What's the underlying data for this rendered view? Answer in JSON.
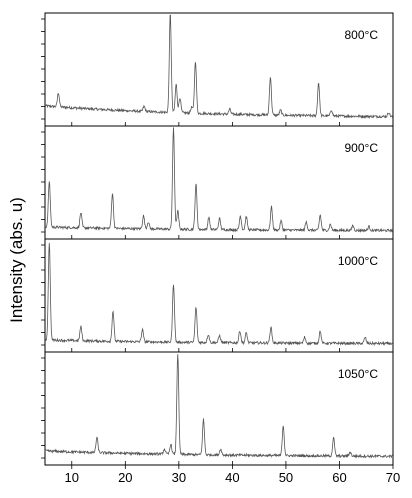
{
  "chart_data": {
    "type": "line",
    "title": "",
    "xlabel": "",
    "ylabel": "Intensity (abs. u)",
    "xlim": [
      5,
      70
    ],
    "x_ticks": [
      10,
      20,
      30,
      40,
      50,
      60,
      70
    ],
    "grid": false,
    "line_color": "#555555",
    "panels": [
      {
        "name": "800°C",
        "baseline": 0.12,
        "peaks": [
          [
            7.5,
            0.14
          ],
          [
            23.5,
            0.05
          ],
          [
            28.4,
            0.98
          ],
          [
            29.5,
            0.28
          ],
          [
            30.2,
            0.15
          ],
          [
            32.4,
            0.06
          ],
          [
            33.1,
            0.52
          ],
          [
            39.5,
            0.05
          ],
          [
            47.1,
            0.38
          ],
          [
            49.0,
            0.05
          ],
          [
            56.1,
            0.33
          ],
          [
            58.5,
            0.06
          ],
          [
            69.2,
            0.04
          ]
        ]
      },
      {
        "name": "900°C",
        "baseline": 0.04,
        "peaks": [
          [
            5.8,
            0.45
          ],
          [
            11.7,
            0.15
          ],
          [
            17.6,
            0.35
          ],
          [
            23.4,
            0.13
          ],
          [
            24.3,
            0.07
          ],
          [
            29.0,
            1.0
          ],
          [
            29.8,
            0.18
          ],
          [
            33.2,
            0.45
          ],
          [
            35.6,
            0.12
          ],
          [
            37.6,
            0.11
          ],
          [
            41.5,
            0.14
          ],
          [
            42.6,
            0.13
          ],
          [
            47.3,
            0.23
          ],
          [
            49.1,
            0.09
          ],
          [
            53.8,
            0.08
          ],
          [
            56.4,
            0.15
          ],
          [
            58.3,
            0.06
          ],
          [
            62.5,
            0.05
          ],
          [
            65.5,
            0.04
          ]
        ]
      },
      {
        "name": "1000°C",
        "baseline": 0.04,
        "peaks": [
          [
            5.8,
            0.97
          ],
          [
            11.7,
            0.14
          ],
          [
            17.7,
            0.3
          ],
          [
            23.2,
            0.12
          ],
          [
            29.0,
            0.58
          ],
          [
            33.2,
            0.35
          ],
          [
            35.5,
            0.08
          ],
          [
            37.6,
            0.07
          ],
          [
            41.4,
            0.12
          ],
          [
            42.6,
            0.1
          ],
          [
            47.2,
            0.16
          ],
          [
            53.5,
            0.06
          ],
          [
            56.4,
            0.12
          ],
          [
            64.8,
            0.06
          ]
        ]
      },
      {
        "name": "1050°C",
        "baseline": 0.06,
        "peaks": [
          [
            14.7,
            0.15
          ],
          [
            27.3,
            0.05
          ],
          [
            28.5,
            0.1
          ],
          [
            29.8,
            1.0
          ],
          [
            34.6,
            0.35
          ],
          [
            37.8,
            0.06
          ],
          [
            49.5,
            0.3
          ],
          [
            58.9,
            0.18
          ],
          [
            62.0,
            0.04
          ]
        ]
      }
    ]
  }
}
